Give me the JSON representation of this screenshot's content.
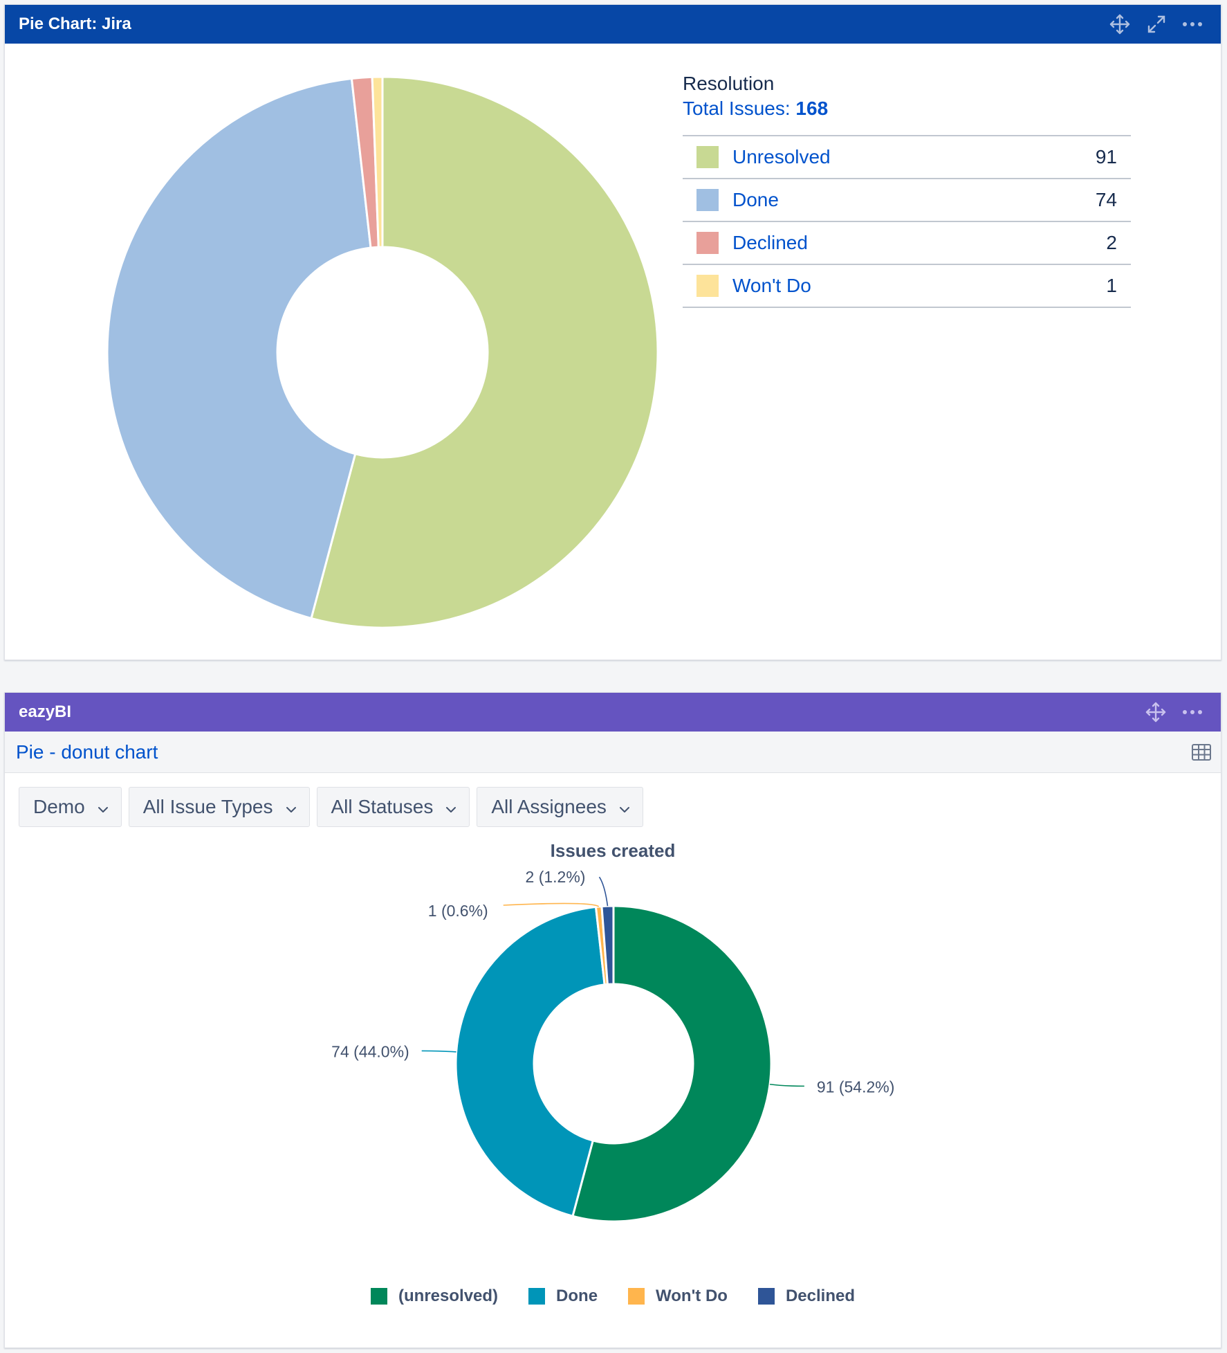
{
  "jira_gadget": {
    "title": "Pie Chart: Jira",
    "tools": [
      "move-icon",
      "expand-icon",
      "more-icon"
    ],
    "legend_title": "Resolution",
    "total_label": "Total Issues:",
    "total_value": "168"
  },
  "eazybi_gadget": {
    "title": "eazyBI",
    "tools": [
      "move-icon",
      "more-icon"
    ],
    "report_title": "Pie - donut chart",
    "filters": [
      "Demo",
      "All Issue Types",
      "All Statuses",
      "All Assignees"
    ]
  },
  "chart_data": [
    {
      "type": "pie",
      "variant": "donut",
      "title": "Resolution",
      "legend": "right",
      "categories": [
        "Unresolved",
        "Done",
        "Declined",
        "Won't Do"
      ],
      "values": [
        91,
        74,
        2,
        1
      ],
      "colors": [
        "#c8d993",
        "#a0bfe2",
        "#e8a09a",
        "#fde39a"
      ]
    },
    {
      "type": "pie",
      "variant": "donut",
      "title": "Issues created",
      "legend": "bottom",
      "categories": [
        "(unresolved)",
        "Done",
        "Won't Do",
        "Declined"
      ],
      "values": [
        91,
        74,
        1,
        2
      ],
      "labels": [
        "91 (54.2%)",
        "74 (44.0%)",
        "1 (0.6%)",
        "2 (1.2%)"
      ],
      "colors": [
        "#00875a",
        "#0095b8",
        "#ffb54d",
        "#2f5597"
      ]
    }
  ]
}
